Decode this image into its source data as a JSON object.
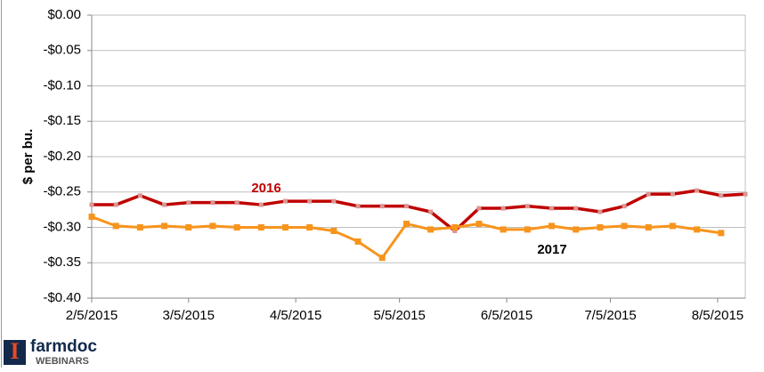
{
  "chart_data": {
    "type": "line",
    "y_label": "$ per bu.",
    "x": [
      "2015-02-05",
      "2015-02-12",
      "2015-02-19",
      "2015-02-26",
      "2015-03-05",
      "2015-03-12",
      "2015-03-19",
      "2015-03-26",
      "2015-04-02",
      "2015-04-09",
      "2015-04-16",
      "2015-04-23",
      "2015-04-30",
      "2015-05-07",
      "2015-05-14",
      "2015-05-21",
      "2015-05-28",
      "2015-06-04",
      "2015-06-11",
      "2015-06-18",
      "2015-06-25",
      "2015-07-02",
      "2015-07-09",
      "2015-07-16",
      "2015-07-23",
      "2015-07-30",
      "2015-08-06",
      "2015-08-13"
    ],
    "series": [
      {
        "name": "2016",
        "color": "#c00000",
        "marker_color": "#d99694",
        "values": [
          -0.268,
          -0.268,
          -0.255,
          -0.268,
          -0.265,
          -0.265,
          -0.265,
          -0.268,
          -0.263,
          -0.263,
          -0.263,
          -0.27,
          -0.27,
          -0.27,
          -0.278,
          -0.305,
          -0.273,
          -0.273,
          -0.27,
          -0.273,
          -0.273,
          -0.278,
          -0.27,
          -0.253,
          -0.253,
          -0.248,
          -0.255,
          -0.253
        ]
      },
      {
        "name": "2017",
        "color": "#f7941d",
        "marker_color": "#f7941d",
        "values": [
          -0.285,
          -0.298,
          -0.3,
          -0.298,
          -0.3,
          -0.298,
          -0.3,
          -0.3,
          -0.3,
          -0.3,
          -0.305,
          -0.32,
          -0.343,
          -0.295,
          -0.303,
          -0.3,
          -0.295,
          -0.303,
          -0.303,
          -0.298,
          -0.303,
          -0.3,
          -0.298,
          -0.3,
          -0.298,
          -0.303,
          -0.308,
          null
        ]
      }
    ],
    "xlim": [
      "2015-02-05",
      "2015-08-13"
    ],
    "xticks": [
      {
        "value": "2015-02-05",
        "label": "2/5/2015"
      },
      {
        "value": "2015-03-05",
        "label": "3/5/2015"
      },
      {
        "value": "2015-04-05",
        "label": "4/5/2015"
      },
      {
        "value": "2015-05-05",
        "label": "5/5/2015"
      },
      {
        "value": "2015-06-05",
        "label": "6/5/2015"
      },
      {
        "value": "2015-07-05",
        "label": "7/5/2015"
      },
      {
        "value": "2015-08-05",
        "label": "8/5/2015"
      }
    ],
    "ylim": [
      -0.4,
      0
    ],
    "yticks": [
      {
        "value": -0.4,
        "label": "-$0.40"
      },
      {
        "value": -0.35,
        "label": "-$0.35"
      },
      {
        "value": -0.3,
        "label": "-$0.30"
      },
      {
        "value": -0.25,
        "label": "-$0.25"
      },
      {
        "value": -0.2,
        "label": "-$0.20"
      },
      {
        "value": -0.15,
        "label": "-$0.15"
      },
      {
        "value": -0.1,
        "label": "-$0.10"
      },
      {
        "value": -0.05,
        "label": "-$0.05"
      },
      {
        "value": 0,
        "label": "$0.00"
      }
    ],
    "grid": true
  },
  "logo": {
    "name": "farmdoc",
    "subtitle": "WEBINARS"
  }
}
